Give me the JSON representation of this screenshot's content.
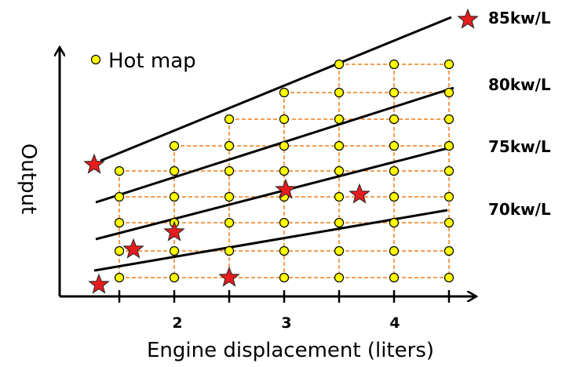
{
  "chart_data": {
    "type": "scatter",
    "title": "",
    "xlabel": "Engine displacement (liters)",
    "ylabel": "Output",
    "x_ticks": [
      "2",
      "3",
      "4"
    ],
    "legend": {
      "label": "Hot map",
      "placement": "top-left"
    },
    "power_lines": [
      "85kw/L",
      "80kw/L",
      "75kw/L",
      "70kw/L"
    ],
    "colors": {
      "grid": "#f07f1a",
      "point": "#ffff00",
      "star": "#e51d1d",
      "line": "#000000"
    }
  }
}
